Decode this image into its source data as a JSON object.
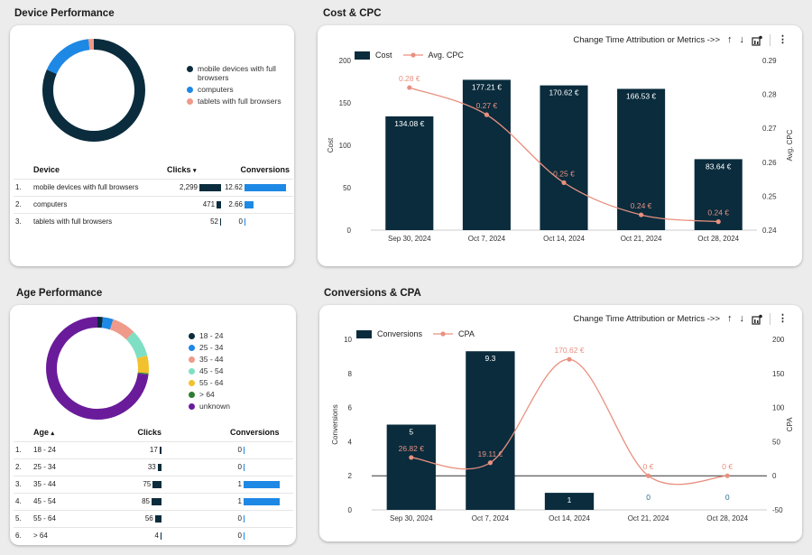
{
  "device_performance": {
    "title": "Device Performance",
    "donut": [
      {
        "label": "mobile devices with full browsers",
        "value": 2299,
        "color": "#0a2c3d"
      },
      {
        "label": "computers",
        "value": 471,
        "color": "#1e88e5"
      },
      {
        "label": "tablets with full browsers",
        "value": 52,
        "color": "#ef9a8a"
      }
    ],
    "legend": [
      {
        "label": "mobile devices with full browsers",
        "color": "#0a2c3d"
      },
      {
        "label": "computers",
        "color": "#1e88e5"
      },
      {
        "label": "tablets with full browsers",
        "color": "#ef9a8a"
      }
    ],
    "table": {
      "headers": [
        "Device",
        "Clicks",
        "Conversions"
      ],
      "sort_indicator": "▾",
      "rows": [
        {
          "idx": "1.",
          "name": "mobile devices with full browsers",
          "clicks": "2,299",
          "clicks_frac": 1.0,
          "conv": "12.62",
          "conv_frac": 1.0
        },
        {
          "idx": "2.",
          "name": "computers",
          "clicks": "471",
          "clicks_frac": 0.205,
          "conv": "2.66",
          "conv_frac": 0.211
        },
        {
          "idx": "3.",
          "name": "tablets with full browsers",
          "clicks": "52",
          "clicks_frac": 0.023,
          "conv": "0",
          "conv_frac": 0
        }
      ]
    }
  },
  "age_performance": {
    "title": "Age Performance",
    "donut": [
      {
        "label": "18 - 24",
        "value": 17,
        "color": "#0a2c3d"
      },
      {
        "label": "25 - 34",
        "value": 33,
        "color": "#1e88e5"
      },
      {
        "label": "35 - 44",
        "value": 75,
        "color": "#ef9a8a"
      },
      {
        "label": "45 - 54",
        "value": 85,
        "color": "#7fdfc4"
      },
      {
        "label": "55 - 64",
        "value": 56,
        "color": "#f2c12e"
      },
      {
        "label": "> 64",
        "value": 4,
        "color": "#2e7d32"
      },
      {
        "label": "unknown",
        "value": 730,
        "color": "#6a1b9a"
      }
    ],
    "legend": [
      {
        "label": "18 - 24",
        "color": "#0a2c3d"
      },
      {
        "label": "25 - 34",
        "color": "#1e88e5"
      },
      {
        "label": "35 - 44",
        "color": "#ef9a8a"
      },
      {
        "label": "45 - 54",
        "color": "#7fdfc4"
      },
      {
        "label": "55 - 64",
        "color": "#f2c12e"
      },
      {
        "label": "> 64",
        "color": "#2e7d32"
      },
      {
        "label": "unknown",
        "color": "#6a1b9a"
      }
    ],
    "table": {
      "headers": [
        "Age",
        "Clicks",
        "Conversions"
      ],
      "sort_indicator": "▴",
      "rows": [
        {
          "idx": "1.",
          "name": "18 - 24",
          "clicks": "17",
          "clicks_frac": 0.2,
          "conv": "0",
          "conv_frac": 0
        },
        {
          "idx": "2.",
          "name": "25 - 34",
          "clicks": "33",
          "clicks_frac": 0.39,
          "conv": "0",
          "conv_frac": 0
        },
        {
          "idx": "3.",
          "name": "35 - 44",
          "clicks": "75",
          "clicks_frac": 0.88,
          "conv": "1",
          "conv_frac": 1.0
        },
        {
          "idx": "4.",
          "name": "45 - 54",
          "clicks": "85",
          "clicks_frac": 1.0,
          "conv": "1",
          "conv_frac": 1.0
        },
        {
          "idx": "5.",
          "name": "55 - 64",
          "clicks": "56",
          "clicks_frac": 0.66,
          "conv": "0",
          "conv_frac": 0
        },
        {
          "idx": "6.",
          "name": "> 64",
          "clicks": "4",
          "clicks_frac": 0.05,
          "conv": "0",
          "conv_frac": 0
        }
      ]
    }
  },
  "cost_cpc": {
    "title": "Cost & CPC",
    "toolbar_label": "Change Time Attribution or Metrics ->>",
    "legend_bar": "Cost",
    "legend_line": "Avg. CPC"
  },
  "conv_cpa": {
    "title": "Conversions & CPA",
    "toolbar_label": "Change Time Attribution or Metrics ->>",
    "legend_bar": "Conversions",
    "legend_line": "CPA"
  },
  "colors": {
    "navy": "#0a2c3d",
    "blue": "#1e88e5",
    "salmon": "#e9907f"
  },
  "chart_data": [
    {
      "type": "bar",
      "title": "Cost & CPC",
      "categories": [
        "Sep 30, 2024",
        "Oct 7, 2024",
        "Oct 14, 2024",
        "Oct 21, 2024",
        "Oct 28, 2024"
      ],
      "series": [
        {
          "name": "Cost",
          "type": "bar",
          "axis": "left",
          "values": [
            134.08,
            177.21,
            170.62,
            166.53,
            83.64
          ],
          "labels": [
            "134.08 €",
            "177.21 €",
            "170.62 €",
            "166.53 €",
            "83.64 €"
          ]
        },
        {
          "name": "Avg. CPC",
          "type": "line",
          "axis": "right",
          "values": [
            0.282,
            0.274,
            0.254,
            0.2445,
            0.2425
          ],
          "labels": [
            "0.28 €",
            "0.27 €",
            "0.25 €",
            "0.24 €",
            "0.24 €"
          ]
        }
      ],
      "ylabel": "Cost",
      "ylim": [
        0,
        200
      ],
      "yticks": [
        0,
        50,
        100,
        150,
        200
      ],
      "y2label": "Avg. CPC",
      "y2lim": [
        0.24,
        0.29
      ],
      "y2ticks": [
        "0.24",
        "0.25",
        "0.26",
        "0.27",
        "0.28",
        "0.29"
      ]
    },
    {
      "type": "bar",
      "title": "Conversions & CPA",
      "categories": [
        "Sep 30, 2024",
        "Oct 7, 2024",
        "Oct 14, 2024",
        "Oct 21, 2024",
        "Oct 28, 2024"
      ],
      "series": [
        {
          "name": "Conversions",
          "type": "bar",
          "axis": "left",
          "values": [
            5,
            9.3,
            1,
            0,
            0
          ],
          "labels": [
            "5",
            "9.3",
            "1",
            "0",
            "0"
          ]
        },
        {
          "name": "CPA",
          "type": "line",
          "axis": "right",
          "values": [
            26.82,
            19.11,
            170.62,
            0,
            0
          ],
          "labels": [
            "26.82 €",
            "19.11 €",
            "170.62 €",
            "0 €",
            "0 €"
          ]
        }
      ],
      "ylabel": "Conversions",
      "ylim": [
        0,
        10
      ],
      "yticks": [
        0,
        2,
        4,
        6,
        8,
        10
      ],
      "y2label": "CPA",
      "y2lim": [
        -50,
        200
      ],
      "y2ticks": [
        -50,
        0,
        50,
        100,
        150,
        200
      ]
    }
  ]
}
